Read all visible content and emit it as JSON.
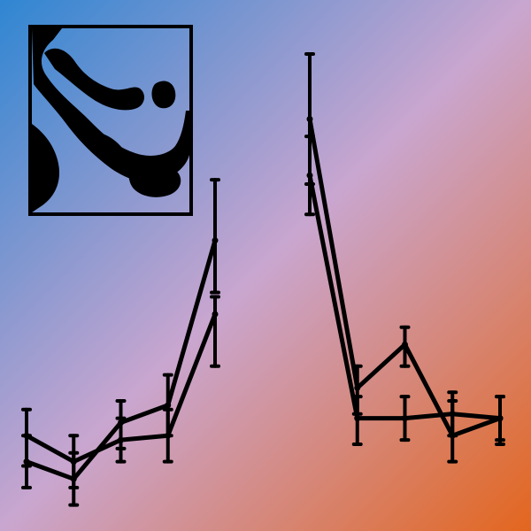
{
  "colors": {
    "gradient_start": "#2f86d2",
    "gradient_mid": "#c9a6cf",
    "gradient_end": "#e3661e",
    "ink": "#000000"
  },
  "decoration": {
    "icon": "abstract-ink-texture"
  },
  "chart_data": [
    {
      "type": "line",
      "title": "",
      "xlabel": "",
      "ylabel": "",
      "grid": false,
      "legend": "none",
      "x": [
        1,
        2,
        3,
        4,
        5
      ],
      "xlim": [
        0.6,
        5.6
      ],
      "ylim": [
        0,
        10
      ],
      "series": [
        {
          "values": [
            2.2,
            1.6,
            2.1,
            2.2,
            5.0
          ],
          "err_low": [
            0.7,
            0.6,
            0.5,
            0.6,
            1.2
          ],
          "err_high": [
            0.6,
            0.6,
            0.5,
            0.6,
            0.4
          ]
        },
        {
          "values": [
            1.6,
            1.2,
            2.5,
            2.9,
            6.7
          ],
          "err_low": [
            0.6,
            0.6,
            0.6,
            0.7,
            1.2
          ],
          "err_high": [
            0.6,
            0.6,
            0.5,
            0.7,
            1.4
          ]
        }
      ]
    },
    {
      "type": "line",
      "title": "",
      "xlabel": "",
      "ylabel": "",
      "grid": false,
      "legend": "none",
      "x": [
        1,
        2,
        3,
        4,
        5
      ],
      "xlim": [
        0.6,
        5.6
      ],
      "ylim": [
        0,
        10
      ],
      "series": [
        {
          "values": [
            8.2,
            2.6,
            2.6,
            2.7,
            2.6
          ],
          "err_low": [
            0.9,
            0.6,
            0.5,
            0.5,
            0.5
          ],
          "err_high": [
            0.9,
            0.5,
            0.5,
            0.5,
            0.5
          ]
        },
        {
          "values": [
            9.5,
            3.3,
            4.3,
            2.2,
            2.6
          ],
          "err_low": [
            1.5,
            0.6,
            0.5,
            0.6,
            0.6
          ],
          "err_high": [
            1.5,
            0.5,
            0.4,
            0.8,
            0.5
          ]
        }
      ]
    }
  ]
}
